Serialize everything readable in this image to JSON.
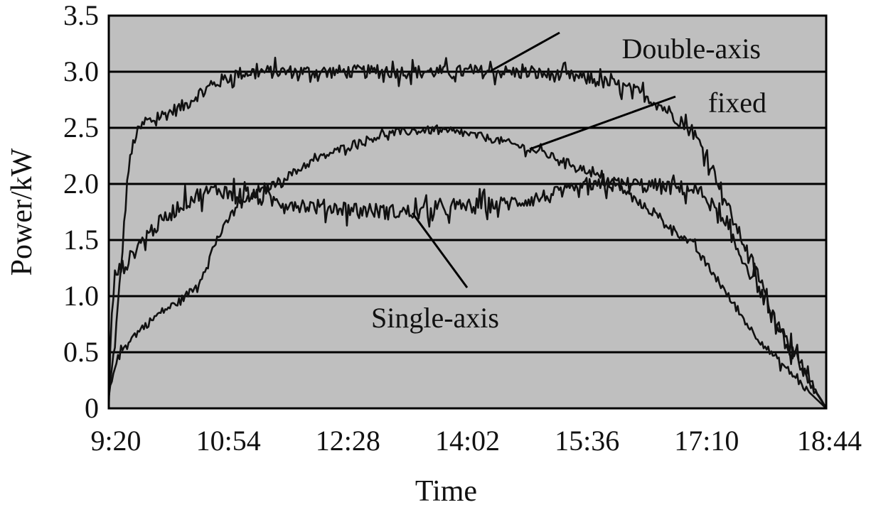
{
  "chart_data": {
    "type": "line",
    "xlabel": "Time",
    "ylabel": "Power/kW",
    "x_ticks": [
      "9:20",
      "10:54",
      "12:28",
      "14:02",
      "15:36",
      "17:10",
      "18:44"
    ],
    "y_ticks": [
      "0",
      "0.5",
      "1.0",
      "1.5",
      "2.0",
      "2.5",
      "3.0",
      "3.5"
    ],
    "xlim": [
      "9:20",
      "18:44"
    ],
    "ylim": [
      0,
      3.5
    ],
    "grid": "horizontal",
    "background_color": "#bfbfbf",
    "line_color": "#111111",
    "series": [
      {
        "name": "Double-axis",
        "x": [
          "9:20",
          "9:25",
          "9:30",
          "9:35",
          "9:40",
          "9:45",
          "9:50",
          "10:00",
          "10:10",
          "10:20",
          "10:30",
          "10:45",
          "11:00",
          "11:15",
          "11:30",
          "12:00",
          "12:30",
          "13:00",
          "13:30",
          "14:00",
          "14:30",
          "15:00",
          "15:30",
          "16:00",
          "16:20",
          "16:40",
          "17:00",
          "17:10",
          "17:20",
          "17:30",
          "17:40",
          "17:50",
          "18:00",
          "18:10",
          "18:20",
          "18:30",
          "18:40",
          "18:44"
        ],
        "values": [
          0.1,
          0.6,
          1.3,
          2.1,
          2.4,
          2.5,
          2.55,
          2.6,
          2.65,
          2.7,
          2.8,
          2.9,
          2.98,
          3.0,
          3.0,
          3.0,
          3.0,
          3.0,
          3.0,
          3.0,
          3.0,
          2.98,
          2.95,
          2.88,
          2.8,
          2.65,
          2.45,
          2.25,
          2.0,
          1.7,
          1.45,
          1.2,
          0.9,
          0.65,
          0.45,
          0.25,
          0.08,
          0.0
        ]
      },
      {
        "name": "fixed",
        "x": [
          "9:20",
          "9:25",
          "9:35",
          "9:45",
          "10:00",
          "10:15",
          "10:30",
          "10:45",
          "11:00",
          "11:15",
          "11:30",
          "12:00",
          "12:30",
          "13:00",
          "13:30",
          "14:00",
          "14:30",
          "15:00",
          "15:30",
          "16:00",
          "16:30",
          "17:00",
          "17:15",
          "17:30",
          "17:45",
          "18:00",
          "18:15",
          "18:30",
          "18:44"
        ],
        "values": [
          0.1,
          0.4,
          0.6,
          0.7,
          0.85,
          0.95,
          1.1,
          1.5,
          1.8,
          1.9,
          2.0,
          2.2,
          2.35,
          2.45,
          2.48,
          2.45,
          2.38,
          2.28,
          2.15,
          1.98,
          1.72,
          1.45,
          1.2,
          0.95,
          0.7,
          0.5,
          0.33,
          0.15,
          0.0
        ]
      },
      {
        "name": "Single-axis",
        "x": [
          "9:20",
          "9:22",
          "9:25",
          "9:30",
          "9:35",
          "9:40",
          "9:50",
          "10:00",
          "10:15",
          "10:30",
          "10:45",
          "11:00",
          "11:15",
          "11:30",
          "12:00",
          "12:30",
          "13:00",
          "13:30",
          "14:00",
          "14:30",
          "15:00",
          "15:30",
          "16:00",
          "16:30",
          "17:00",
          "17:10",
          "17:20",
          "17:30",
          "17:40",
          "17:50",
          "18:00",
          "18:15",
          "18:30",
          "18:44"
        ],
        "values": [
          0.0,
          0.8,
          1.2,
          1.25,
          1.3,
          1.4,
          1.55,
          1.65,
          1.8,
          1.9,
          1.95,
          1.92,
          1.88,
          1.85,
          1.8,
          1.78,
          1.75,
          1.75,
          1.8,
          1.82,
          1.88,
          1.95,
          2.0,
          1.98,
          1.95,
          1.88,
          1.7,
          1.5,
          1.3,
          1.1,
          0.85,
          0.55,
          0.25,
          0.0
        ]
      }
    ],
    "annotations": [
      {
        "text": "Double-axis",
        "series": "Double-axis"
      },
      {
        "text": "fixed",
        "series": "fixed"
      },
      {
        "text": "Single-axis",
        "series": "Single-axis"
      }
    ]
  }
}
